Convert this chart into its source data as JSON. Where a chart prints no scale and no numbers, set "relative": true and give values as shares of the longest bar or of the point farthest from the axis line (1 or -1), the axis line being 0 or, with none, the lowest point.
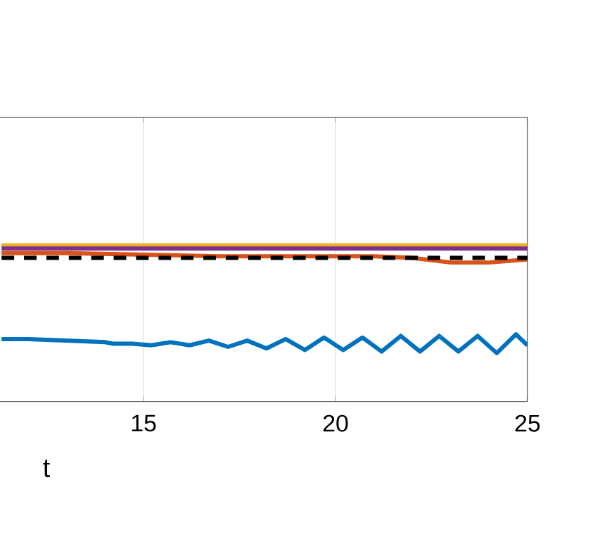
{
  "chart_data": {
    "type": "line",
    "xlabel": "t",
    "relative": true,
    "xlim": [
      11.26,
      25
    ],
    "xticks": [
      15,
      20,
      25
    ],
    "grid": "x",
    "tick_labels": "x",
    "line_style": "solid",
    "series": [
      {
        "color": "#0072bd",
        "x": [
          11.3,
          12,
          13,
          14,
          14.2,
          14.7,
          15.2,
          15.7,
          16.2,
          16.7,
          17.2,
          17.7,
          18.2,
          18.7,
          19.2,
          19.7,
          20.2,
          20.7,
          21.2,
          21.7,
          22.2,
          22.7,
          23.2,
          23.7,
          24.2,
          24.7,
          25
        ],
        "values": [
          0.4,
          0.4,
          0.39,
          0.38,
          0.37,
          0.37,
          0.36,
          0.38,
          0.36,
          0.39,
          0.35,
          0.39,
          0.34,
          0.4,
          0.33,
          0.41,
          0.33,
          0.41,
          0.32,
          0.42,
          0.32,
          0.42,
          0.32,
          0.42,
          0.31,
          0.43,
          0.36
        ]
      },
      {
        "color": "#d95319",
        "x": [
          11.3,
          13,
          15,
          17,
          19,
          20,
          21,
          22,
          23,
          24,
          25
        ],
        "values": [
          0.95,
          0.95,
          0.94,
          0.93,
          0.93,
          0.93,
          0.93,
          0.92,
          0.89,
          0.89,
          0.91
        ]
      },
      {
        "color": "#edb120",
        "x": [
          11.3,
          25
        ],
        "values": [
          1.0,
          1.0
        ]
      },
      {
        "color": "#7e2f8e",
        "x": [
          11.3,
          25
        ],
        "values": [
          0.98,
          0.98
        ]
      },
      {
        "color": "#000000",
        "line_style": "dashed",
        "x": [
          11.3,
          25
        ],
        "values": [
          0.92,
          0.92
        ]
      }
    ]
  }
}
